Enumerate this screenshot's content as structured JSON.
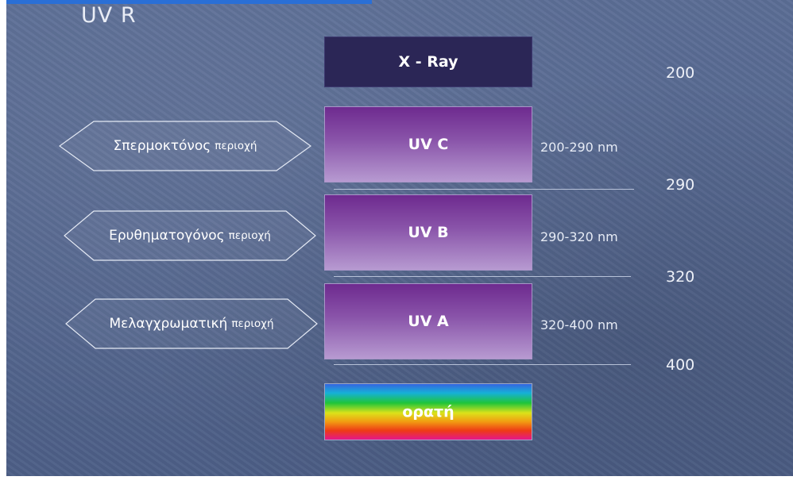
{
  "title": "UV R",
  "bands": [
    {
      "id": "xray",
      "label": "X - Ray"
    },
    {
      "id": "uvc",
      "label": "UV C",
      "range": "200-290 nm"
    },
    {
      "id": "uvb",
      "label": "UV B",
      "range": "290-320 nm"
    },
    {
      "id": "uva",
      "label": "UV A",
      "range": "320-400 nm"
    },
    {
      "id": "visible",
      "label": "ορατή"
    }
  ],
  "regions": [
    {
      "main": "Σπερμοκτόνος",
      "sub": "περιοχή"
    },
    {
      "main": "Ερυθηματογόνος",
      "sub": "περιοχή"
    },
    {
      "main": "Μελαγχρωματική",
      "sub": "περιοχή"
    }
  ],
  "scale": [
    "200",
    "290",
    "320",
    "400"
  ]
}
